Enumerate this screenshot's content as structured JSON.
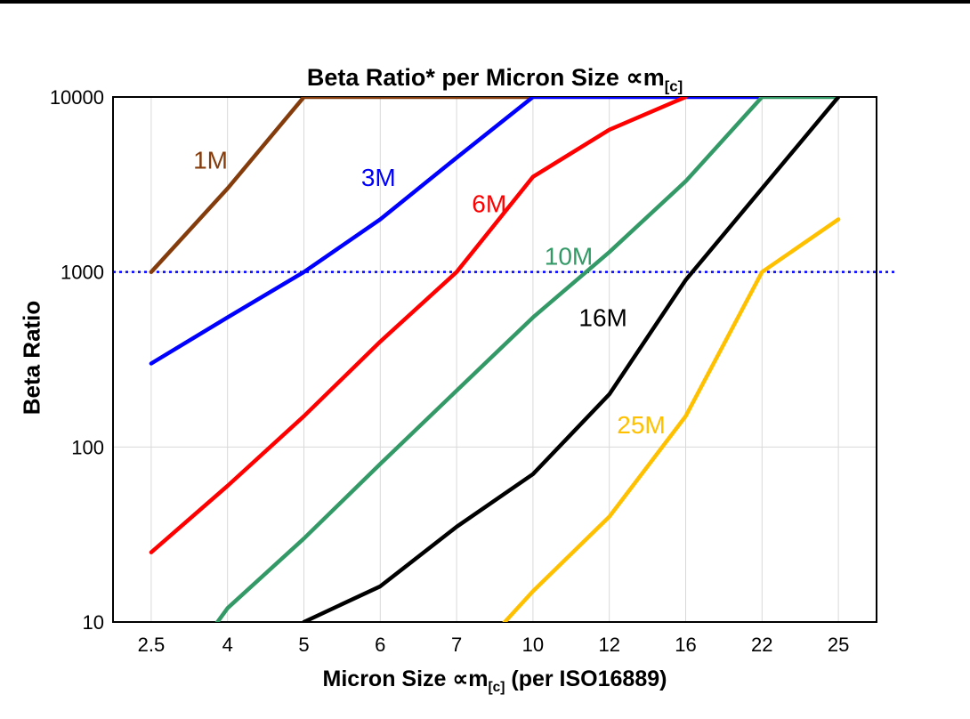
{
  "chart_data": {
    "type": "line",
    "title": "Beta Ratio* per Micron Size ∝m",
    "title_sub": "[c]",
    "xlabel": "Micron Size ∝m",
    "xlabel_sub": "[c]",
    "xlabel_suffix": " (per ISO16889)",
    "ylabel": "Beta Ratio",
    "y_scale": "log",
    "ylim": [
      10,
      10000
    ],
    "y_ticks": [
      10,
      100,
      1000,
      10000
    ],
    "x_categories": [
      "2.5",
      "4",
      "5",
      "6",
      "7",
      "10",
      "12",
      "16",
      "22",
      "25"
    ],
    "grid_color": "#d9d9d9",
    "reference_line": {
      "y": 1000,
      "color": "#0000ff",
      "style": "dotted"
    },
    "series": [
      {
        "name": "1M",
        "color": "#843c0c",
        "values": [
          1000,
          3000,
          10000,
          10000,
          10000,
          10000,
          null,
          null,
          null,
          null
        ]
      },
      {
        "name": "3M",
        "color": "#0000ff",
        "values": [
          300,
          550,
          1000,
          2000,
          4500,
          10000,
          10000,
          10000,
          10000,
          null
        ]
      },
      {
        "name": "6M",
        "color": "#ff0000",
        "values": [
          25,
          60,
          150,
          400,
          1000,
          3500,
          6500,
          10000,
          null,
          null
        ]
      },
      {
        "name": "10M",
        "color": "#339966",
        "values": [
          3,
          12,
          30,
          80,
          210,
          550,
          1300,
          3300,
          10000,
          10000
        ]
      },
      {
        "name": "16M",
        "color": "#000000",
        "values": [
          null,
          null,
          10,
          16,
          35,
          70,
          200,
          900,
          3000,
          10000
        ]
      },
      {
        "name": "25M",
        "color": "#ffc000",
        "values": [
          null,
          null,
          null,
          null,
          5,
          15,
          40,
          150,
          1000,
          2000
        ]
      }
    ],
    "labels": [
      {
        "text": "1M",
        "color": "#843c0c",
        "xi": 0.55,
        "v": 3900
      },
      {
        "text": "3M",
        "color": "#0000ff",
        "xi": 2.75,
        "v": 3100
      },
      {
        "text": "6M",
        "color": "#ff0000",
        "xi": 4.2,
        "v": 2200
      },
      {
        "text": "10M",
        "color": "#339966",
        "xi": 5.15,
        "v": 1100
      },
      {
        "text": "16M",
        "color": "#000000",
        "xi": 5.6,
        "v": 490
      },
      {
        "text": "25M",
        "color": "#ffc000",
        "xi": 6.1,
        "v": 120
      }
    ]
  }
}
